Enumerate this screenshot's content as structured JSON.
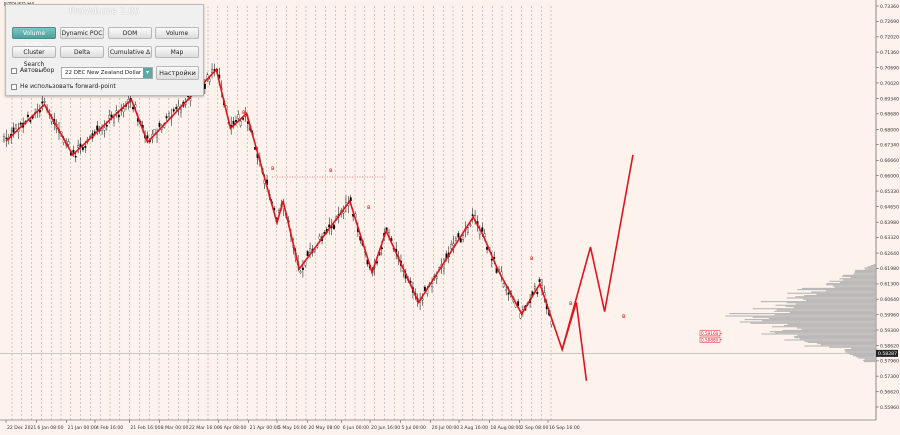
{
  "symbol": "NZDUSD,H4",
  "panel": {
    "title": "ProVolume 2.05",
    "buttons": [
      {
        "label": "Volume Profile",
        "active": true
      },
      {
        "label": "Dynamic POC",
        "active": false
      },
      {
        "label": "DOM",
        "active": false
      },
      {
        "label": "Volume",
        "active": false
      },
      {
        "label": "Cluster Search",
        "active": false
      },
      {
        "label": "Delta",
        "active": false
      },
      {
        "label": "Cumulative Δ",
        "active": false
      },
      {
        "label": "Map",
        "active": false
      }
    ],
    "auto_select_label": "Автовыбор",
    "contract_value": "22 DEC New Zealand Dollar",
    "settings_label": "Настройки",
    "forward_point_label": "Не использовать forward-point"
  },
  "colors": {
    "background": "#fdf3ec",
    "wave": "#e0141e",
    "candles": "#000000",
    "active_button": "#5aa8a4",
    "volume_profile": "#b0b0b0"
  },
  "chart_data": {
    "type": "line",
    "price_labels": [
      "0.73360",
      "0.72690",
      "0.72020",
      "0.71360",
      "0.70690",
      "0.70020",
      "0.69340",
      "0.68680",
      "0.68000",
      "0.67340",
      "0.66660",
      "0.66000",
      "0.65330",
      "0.64650",
      "0.63980",
      "0.63320",
      "0.62640",
      "0.61980",
      "0.61300",
      "0.60640",
      "0.59960",
      "0.59300",
      "0.58620",
      "0.57960",
      "0.57300",
      "0.56620",
      "0.55960"
    ],
    "current_price": "0.58287",
    "level_labels": [
      "0.59160",
      "0.58880"
    ],
    "date_labels": [
      "22 Dec 2021",
      "6 Jan 08:00",
      "21 Jan 00:00",
      "4 Feb 16:00",
      "21 Feb 16:00",
      "8 Mar 00:00",
      "22 Mar 16:00",
      "6 Apr 08:00",
      "21 Apr 00:00",
      "5 May 16:00",
      "20 May 08:00",
      "6 Jun 00:00",
      "20 Jun 16:00",
      "5 Jul 00:00",
      "20 Jul 00:00",
      "3 Aug 16:00",
      "18 Aug 08:00",
      "2 Sep 08:00",
      "16 Sep 16:00"
    ],
    "wave_labels": [
      "в",
      "в",
      "в",
      "в",
      "в",
      "в",
      "в"
    ],
    "wave_points": [
      {
        "x": "22 Dec 2021",
        "y": 0.675
      },
      {
        "x": "10 Jan",
        "y": 0.6908
      },
      {
        "x": "24 Jan",
        "y": 0.669
      },
      {
        "x": "22 Feb",
        "y": 0.693
      },
      {
        "x": "2 Mar",
        "y": 0.6745
      },
      {
        "x": "5 Apr",
        "y": 0.706
      },
      {
        "x": "12 Apr",
        "y": 0.6805
      },
      {
        "x": "20 Apr",
        "y": 0.687
      },
      {
        "x": "5 May",
        "y": 0.6395
      },
      {
        "x": "8 May",
        "y": 0.649
      },
      {
        "x": "16 May",
        "y": 0.6195
      },
      {
        "x": "10 Jun",
        "y": 0.649
      },
      {
        "x": "21 Jun",
        "y": 0.618
      },
      {
        "x": "28 Jun",
        "y": 0.636
      },
      {
        "x": "14 Jul",
        "y": 0.605
      },
      {
        "x": "10 Aug",
        "y": 0.642
      },
      {
        "x": "15 Aug",
        "y": 0.634
      },
      {
        "x": "22 Aug",
        "y": 0.6195
      },
      {
        "x": "3 Sep",
        "y": 0.6
      },
      {
        "x": "12 Sep",
        "y": 0.613
      },
      {
        "x": "23 Sep",
        "y": 0.5845
      },
      {
        "x": "30 Sep",
        "y": 0.605
      },
      {
        "x": "5 Oct",
        "y": 0.571
      }
    ],
    "projection_points": [
      {
        "x": "23 Sep",
        "y": 0.5845
      },
      {
        "x": "7 Oct",
        "y": 0.629
      },
      {
        "x": "14 Oct",
        "y": 0.601
      },
      {
        "x": "28 Oct",
        "y": 0.669
      }
    ]
  }
}
